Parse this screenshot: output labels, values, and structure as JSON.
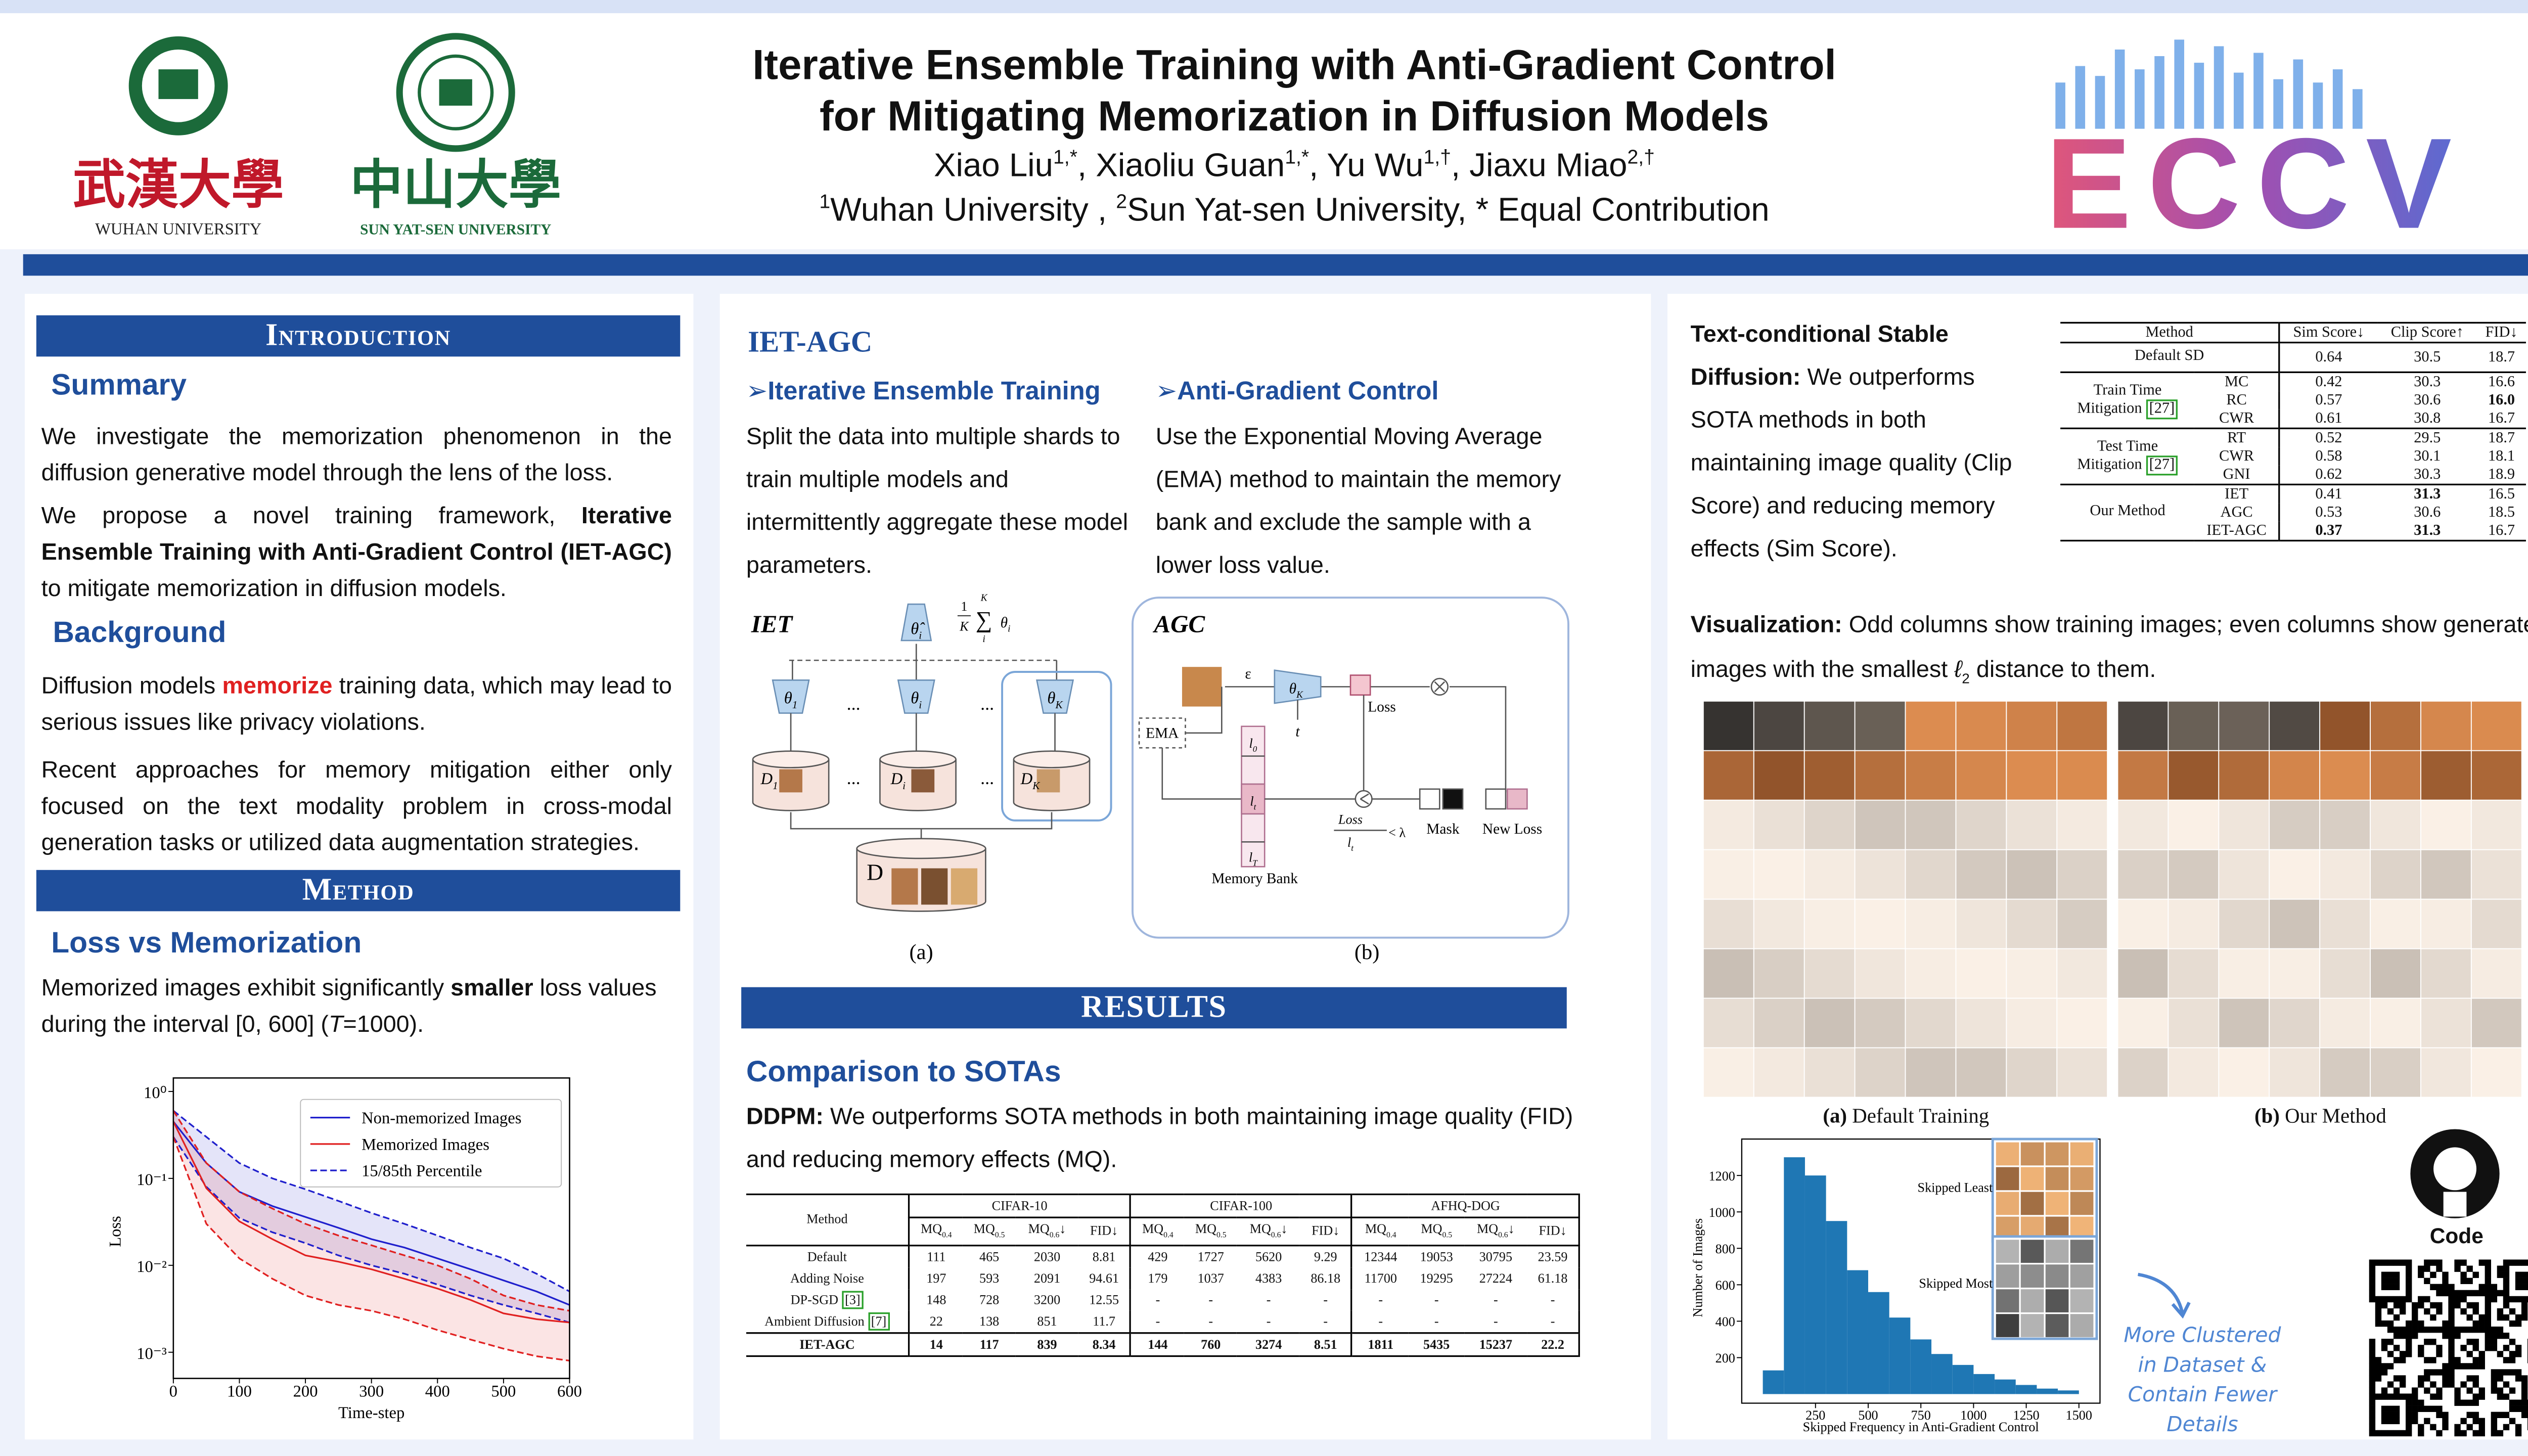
{
  "header": {
    "title": [
      "Iterative Ensemble Training with Anti-Gradient Control",
      "for Mitigating Memorization in Diffusion Models"
    ],
    "authors": [
      "Xiao Liu",
      "1,*",
      ", Xiaoliu Guan",
      "1,*",
      ", Yu Wu",
      "1,†",
      ", Jiaxu Miao",
      "2,†"
    ],
    "affiliations": [
      "1",
      "Wuhan University , ",
      "2",
      "Sun Yat-sen University, * Equal Contribution"
    ],
    "logos": [
      {
        "chinese": "武漢大學",
        "english": "WUHAN UNIVERSITY"
      },
      {
        "chinese": "中山大學",
        "english": "SUN  YAT-SEN UNIVERSITY"
      }
    ],
    "conference": "ECCV"
  },
  "introduction": {
    "heading": "Introduction",
    "summary": {
      "heading": "Summary",
      "p1": "We investigate the memorization phenomenon in the diffusion generative model through the lens of the loss.",
      "p2": [
        "We propose a novel training framework, ",
        "Iterative Ensemble Training with Anti-Gradient Control (IET-AGC)",
        " to mitigate memorization in diffusion models."
      ]
    },
    "background": {
      "heading": "Background",
      "p1": [
        "Diffusion models ",
        "memorize",
        " training data, which may lead to serious issues like privacy violations."
      ],
      "p2": "Recent approaches for memory mitigation either only focused on the text modality problem in cross-modal generation tasks or utilized data augmentation strategies."
    }
  },
  "method": {
    "heading": "Method",
    "subheading": "Loss vs Memorization",
    "text": [
      "Memorized images exhibit significantly ",
      "smaller",
      " loss values during the interval [0, 600]  (",
      "T",
      "=1000)."
    ]
  },
  "iet_agc": {
    "heading": "IET-AGC",
    "iet": {
      "heading": "Iterative Ensemble Training",
      "text": "Split the data into multiple shards to train multiple models and intermittently aggregate these model parameters."
    },
    "agc": {
      "heading": "Anti-Gradient Control",
      "text": "Use the Exponential Moving Average (EMA) method to maintain the memory bank and exclude the sample with a lower loss value."
    },
    "figure": {
      "iet_label": "IET",
      "agc_label": "AGC",
      "caption_a": "(a)",
      "caption_b": "(b)",
      "aggregate": [
        "θ̂",
        "i"
      ],
      "formula": {
        "numerator": "1",
        "denominator": "K",
        "top": "K",
        "sum": "∑",
        "bottom": "i",
        "term": [
          "θ",
          "i"
        ]
      },
      "models": [
        [
          "θ",
          "1"
        ],
        [
          "θ",
          "i"
        ],
        [
          "θ",
          "K"
        ]
      ],
      "shards": [
        [
          "D",
          "1"
        ],
        [
          "D",
          "i"
        ],
        [
          "D",
          "K"
        ]
      ],
      "ellipsis": "...",
      "dataset": "D",
      "epsilon": "ε",
      "t": "t",
      "agc_model": [
        "θ",
        "K"
      ],
      "loss": "Loss",
      "ema": "EMA",
      "bank": [
        [
          "l",
          "0"
        ],
        [
          "l",
          "t"
        ],
        [
          "l",
          "T"
        ]
      ],
      "memory_bank": "Memory Bank",
      "condition": {
        "numerator": "Loss",
        "denominator": [
          "l",
          "t"
        ],
        "relation": "< λ"
      },
      "mask": "Mask",
      "new_loss": "New Loss"
    }
  },
  "results": {
    "heading": "RESULTS",
    "subheading": "Comparison to SOTAs",
    "text": [
      "DDPM:",
      " We outperforms SOTA methods in  both maintaining image quality (FID) and reducing memory effects (MQ)."
    ],
    "table": {
      "method_header": "Method",
      "groups": [
        "CIFAR-10",
        "CIFAR-100",
        "AFHQ-DOG"
      ],
      "columns": [
        {
          "main": "MQ",
          "sub": "0.4"
        },
        {
          "main": "MQ",
          "sub": "0.5"
        },
        {
          "main": "MQ",
          "sub": "0.6",
          "suffix": "↓"
        },
        {
          "main": "FID↓"
        }
      ],
      "rows": [
        {
          "method": "Default",
          "values": [
            "111",
            "465",
            "2030",
            "8.81",
            "429",
            "1727",
            "5620",
            "9.29",
            "12344",
            "19053",
            "30795",
            "23.59"
          ]
        },
        {
          "method": "Adding Noise",
          "values": [
            "197",
            "593",
            "2091",
            "94.61",
            "179",
            "1037",
            "4383",
            "86.18",
            "11700",
            "19295",
            "27224",
            "61.18"
          ]
        },
        {
          "method": "DP-SGD ",
          "cite": "[3]",
          "values": [
            "148",
            "728",
            "3200",
            "12.55",
            "-",
            "-",
            "-",
            "-",
            "-",
            "-",
            "-",
            "-"
          ]
        },
        {
          "method": "Ambient Diffusion ",
          "cite": "[7]",
          "values": [
            "22",
            "138",
            "851",
            "11.7",
            "-",
            "-",
            "-",
            "-",
            "-",
            "-",
            "-",
            "-"
          ]
        },
        {
          "method": "IET-AGC",
          "values": [
            "14",
            "117",
            "839",
            "8.34",
            "144",
            "760",
            "3274",
            "8.51",
            "1811",
            "5435",
            "15237",
            "22.2"
          ],
          "bold": true
        }
      ]
    }
  },
  "stable_diffusion": {
    "text": [
      "Text-conditional Stable Diffusion:",
      " We outperforms SOTA methods in  both maintaining image quality (Clip Score) and reducing memory effects (Sim Score)."
    ],
    "table": {
      "columns": [
        "Method",
        "Sim Score↓",
        "Clip Score↑",
        "FID↓"
      ],
      "groups": [
        {
          "label": [
            "Default SD"
          ],
          "rows": [
            {
              "values": [
                "0.64",
                "30.5",
                "18.7"
              ]
            }
          ]
        },
        {
          "label": [
            "Train Time",
            "Mitigation "
          ],
          "cite": "[27]",
          "rows": [
            {
              "name": "MC",
              "values": [
                "0.42",
                "30.3",
                "16.6"
              ]
            },
            {
              "name": "RC",
              "values": [
                "0.57",
                "30.6",
                "16.0"
              ],
              "bold": [
                2
              ]
            },
            {
              "name": "CWR",
              "values": [
                "0.61",
                "30.8",
                "16.7"
              ]
            }
          ]
        },
        {
          "label": [
            "Test Time",
            "Mitigation "
          ],
          "cite": "[27]",
          "rows": [
            {
              "name": "RT",
              "values": [
                "0.52",
                "29.5",
                "18.7"
              ]
            },
            {
              "name": "CWR",
              "values": [
                "0.58",
                "30.1",
                "18.1"
              ]
            },
            {
              "name": "GNI",
              "values": [
                "0.62",
                "30.3",
                "18.9"
              ]
            }
          ]
        },
        {
          "label": [
            "Our Method"
          ],
          "rows": [
            {
              "name": "IET",
              "values": [
                "0.41",
                "31.3",
                "16.5"
              ],
              "bold": [
                1
              ]
            },
            {
              "name": "AGC",
              "values": [
                "0.53",
                "30.6",
                "18.5"
              ]
            },
            {
              "name": "IET-AGC",
              "values": [
                "0.37",
                "31.3",
                "16.7"
              ],
              "bold": [
                0,
                1
              ]
            }
          ]
        }
      ]
    }
  },
  "visualization": {
    "text": [
      "Visualization:",
      " Odd columns show training images; even columns show generated images with the smallest ",
      "ℓ",
      "2",
      " distance to them."
    ],
    "captions": [
      [
        "(a)",
        " Default Training"
      ],
      [
        "(b)",
        " Our Method"
      ]
    ],
    "annotation": [
      "More Clustered",
      "in Dataset &",
      "Contain Fewer",
      "Details"
    ],
    "code_label": "Code"
  },
  "chart_data": [
    {
      "type": "line",
      "xlabel": "Time-step",
      "ylabel": "Loss",
      "log_y": true,
      "x": [
        0,
        50,
        100,
        150,
        200,
        250,
        300,
        350,
        400,
        450,
        500,
        550,
        600
      ],
      "xlim": [
        0,
        600
      ],
      "xticks": [
        0,
        100,
        200,
        300,
        400,
        500,
        600
      ],
      "ylim": [
        0.0005,
        1.2
      ],
      "yticks": [
        {
          "value": 1,
          "label": "10⁰"
        },
        {
          "value": 0.1,
          "label": "10⁻¹"
        },
        {
          "value": 0.01,
          "label": "10⁻²"
        },
        {
          "value": 0.001,
          "label": "10⁻³"
        }
      ],
      "series": [
        {
          "name": "Non-memorized Images",
          "color": "#1f1fcc",
          "values": [
            0.45,
            0.15,
            0.07,
            0.048,
            0.036,
            0.027,
            0.02,
            0.016,
            0.012,
            0.009,
            0.0067,
            0.005,
            0.0035
          ],
          "upper": [
            0.6,
            0.3,
            0.15,
            0.1,
            0.075,
            0.055,
            0.04,
            0.03,
            0.022,
            0.016,
            0.012,
            0.008,
            0.005
          ],
          "lower": [
            0.3,
            0.08,
            0.035,
            0.024,
            0.018,
            0.013,
            0.01,
            0.008,
            0.006,
            0.0045,
            0.0035,
            0.0028,
            0.0022
          ]
        },
        {
          "name": "Memorized Images",
          "color": "#e02020",
          "values": [
            0.45,
            0.077,
            0.032,
            0.02,
            0.013,
            0.011,
            0.009,
            0.007,
            0.0054,
            0.004,
            0.0028,
            0.0024,
            0.0022
          ],
          "upper": [
            0.6,
            0.15,
            0.07,
            0.045,
            0.03,
            0.022,
            0.017,
            0.013,
            0.01,
            0.007,
            0.0045,
            0.0035,
            0.003
          ],
          "lower": [
            0.3,
            0.03,
            0.012,
            0.007,
            0.0045,
            0.0035,
            0.003,
            0.0024,
            0.0018,
            0.0014,
            0.0011,
            0.0009,
            0.0008
          ]
        }
      ],
      "percentile_label": "15/85th Percentile"
    },
    {
      "type": "histogram",
      "xlabel": "Skipped Frequency in Anti-Gradient Control",
      "ylabel": "Number of Images",
      "bins": [
        0,
        100,
        200,
        300,
        400,
        500,
        600,
        700,
        800,
        900,
        1000,
        1100,
        1200,
        1300,
        1400,
        1500
      ],
      "values": [
        130,
        1300,
        1200,
        950,
        680,
        560,
        420,
        300,
        220,
        160,
        110,
        80,
        50,
        30,
        20
      ],
      "color": "#1f77b4",
      "xlim": [
        -100,
        1600
      ],
      "xticks": [
        250,
        500,
        750,
        1000,
        1250,
        1500
      ],
      "ylim": [
        -50,
        1400
      ],
      "yticks": [
        200,
        400,
        600,
        800,
        1000,
        1200
      ],
      "annotations": [
        "Skipped Least",
        "Skipped Most"
      ]
    }
  ]
}
